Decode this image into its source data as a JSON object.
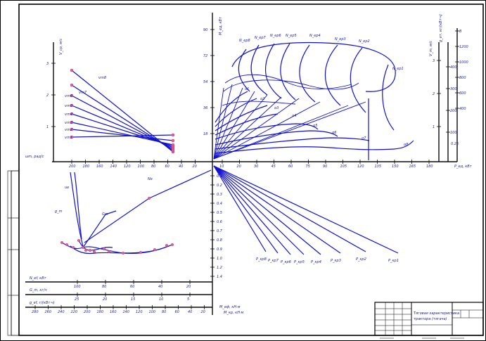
{
  "colors": {
    "curve": "#1010d0",
    "points": "#e060a0",
    "frame": "#000000"
  },
  "top_right": {
    "x_axis_label": "P_ед, кВт",
    "x_ticks": [
      "10",
      "20",
      "30",
      "45",
      "60",
      "75",
      "90",
      "105",
      "120",
      "135",
      "150",
      "165",
      "180"
    ],
    "y_axis_label": "M_ед, кВт",
    "y_ticks": [
      "18",
      "36",
      "54",
      "72",
      "90"
    ],
    "ne_labels": [
      "N_ep8",
      "N_ep7",
      "N_ep6",
      "N_ep5",
      "N_ep4",
      "N_ep3",
      "N_ep2",
      "N_ep1"
    ],
    "curve_labels": [
      "α8",
      "α7",
      "α6",
      "α5",
      "α4",
      "α3",
      "α2",
      "α1"
    ],
    "right_scale1_label": "V_m, м/с",
    "right_scale1_ticks": [
      "1",
      "2",
      "3"
    ],
    "right_scale2_label": "g_ет, кг/(кВт·ч)",
    "right_scale2_ticks": [
      "400",
      "300",
      "200",
      "100"
    ],
    "right_scale2_extra": [
      "0.25"
    ],
    "right_scale3_ticks": [
      "B",
      "1200",
      "1000",
      "800",
      "600",
      "400"
    ]
  },
  "top_left": {
    "y_axis_label": "V_ср, м/с",
    "y_ticks": [
      "1",
      "2",
      "3"
    ],
    "x_axis_label": "ωm, рад/с",
    "x_ticks": [
      "200",
      "180",
      "160",
      "140",
      "120",
      "100",
      "80",
      "60",
      "40",
      "20"
    ],
    "curve_labels": [
      "vm8",
      "vm7",
      "vm6",
      "vm5",
      "vm4",
      "vm3",
      "vm2",
      "vm1"
    ]
  },
  "bottom_right": {
    "y_axis_label": "M_кр, кН·м",
    "y_ticks": [
      "0.1",
      "0.2",
      "0.3",
      "0.4",
      "0.5",
      "0.6",
      "0.7",
      "0.8",
      "0.9",
      "1.0",
      "1.2",
      "1.4"
    ],
    "ray_labels": [
      "P_кр8",
      "P_кр7",
      "P_кр6",
      "P_кр5",
      "P_кр4",
      "P_кр3",
      "P_кр2",
      "P_кр1"
    ]
  },
  "bottom_left": {
    "curve_labels": [
      "Ne",
      "ue",
      "Gm",
      "g_m"
    ],
    "scale_ne_label": "N_ef, кВт",
    "scale_ne_ticks": [
      "100",
      "80",
      "60",
      "40",
      "20"
    ],
    "scale_gm_label": "G_m, кг/ч",
    "scale_gm_ticks": [
      "25",
      "20",
      "15",
      "10",
      "5"
    ],
    "scale_ge_label": "g_ef, г/(кВт·ч)",
    "scale_ge_ticks": [
      "280",
      "260",
      "240",
      "220",
      "200",
      "180",
      "160",
      "140",
      "120",
      "100",
      "80",
      "60",
      "40",
      "20"
    ],
    "bottom_axis_label": "M_еф, кН·м"
  },
  "title_block": {
    "line1": "Тяговая характеристика",
    "line2": "трактора (тягача)"
  }
}
